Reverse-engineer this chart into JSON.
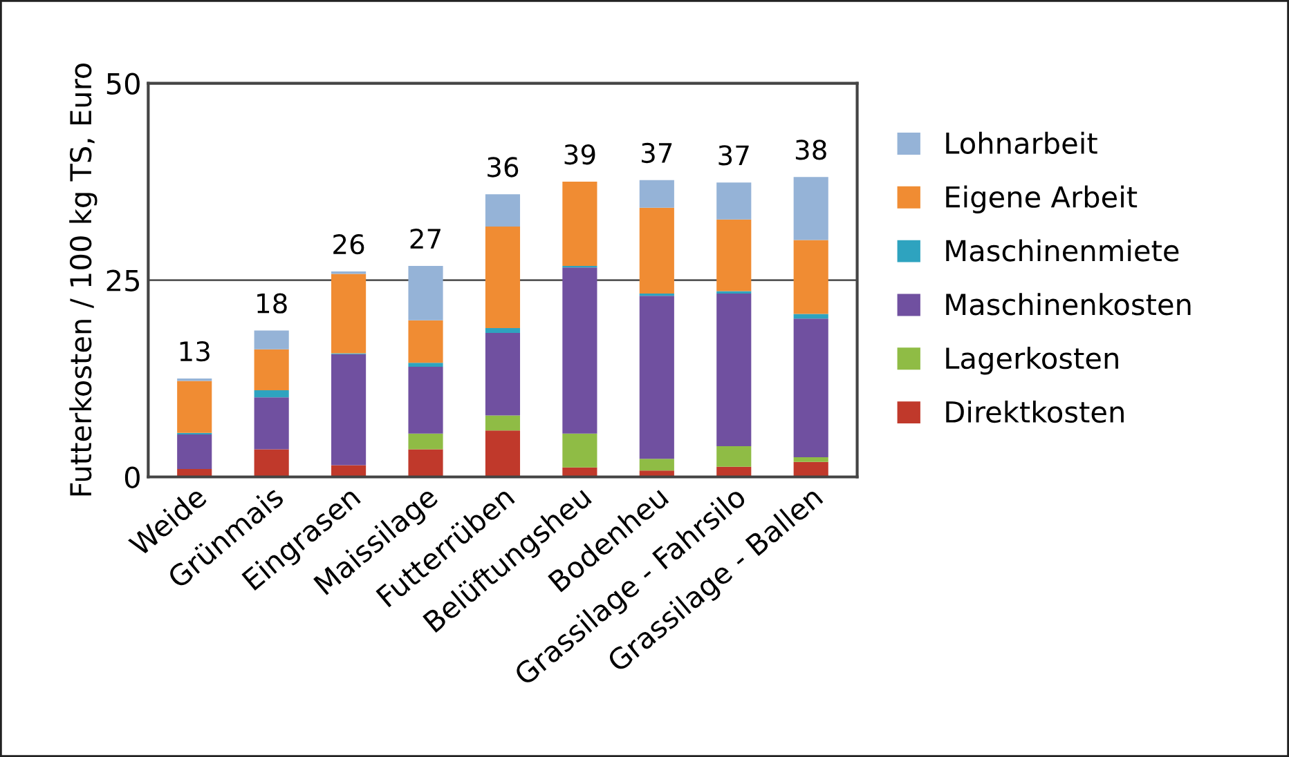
{
  "chart_data": {
    "type": "bar",
    "stacked": true,
    "ylabel": "Futterkosten / 100 kg TS, Euro",
    "categories": [
      "Weide",
      "Grünmais",
      "Eingrasen",
      "Maissilage",
      "Futterrüben",
      "Belüftungsheu",
      "Bodenheu",
      "Grassilage - Fahrsilo",
      "Grassilage - Ballen"
    ],
    "series": [
      {
        "name": "Direktkosten",
        "color": "#c0392b",
        "values": [
          1.0,
          3.5,
          1.5,
          3.5,
          5.9,
          1.2,
          0.8,
          1.3,
          1.9
        ]
      },
      {
        "name": "Lagerkosten",
        "color": "#8fbc45",
        "values": [
          0,
          0,
          0,
          2.0,
          1.9,
          4.3,
          1.5,
          2.6,
          0.6
        ]
      },
      {
        "name": "Maschinenkosten",
        "color": "#7050a0",
        "values": [
          4.4,
          6.6,
          14.1,
          8.5,
          10.5,
          21.1,
          20.7,
          19.4,
          17.6
        ]
      },
      {
        "name": "Maschinenmiete",
        "color": "#2ea3bf",
        "values": [
          0.2,
          0.9,
          0.1,
          0.5,
          0.6,
          0.2,
          0.3,
          0.3,
          0.6
        ]
      },
      {
        "name": "Eigene Arbeit",
        "color": "#f08c33",
        "values": [
          6.6,
          5.2,
          10.1,
          5.4,
          12.9,
          10.7,
          10.9,
          9.1,
          9.4
        ]
      },
      {
        "name": "Lohnarbeit",
        "color": "#95b3d7",
        "values": [
          0.3,
          2.4,
          0.3,
          6.9,
          4.1,
          0,
          3.5,
          4.7,
          8.0
        ]
      }
    ],
    "totals": [
      "13",
      "18",
      "26",
      "27",
      "36",
      "39",
      "37",
      "37",
      "38"
    ],
    "ylim": [
      0,
      50
    ],
    "yticks": [
      0,
      25,
      50
    ],
    "grid": "y",
    "legend": "right"
  }
}
